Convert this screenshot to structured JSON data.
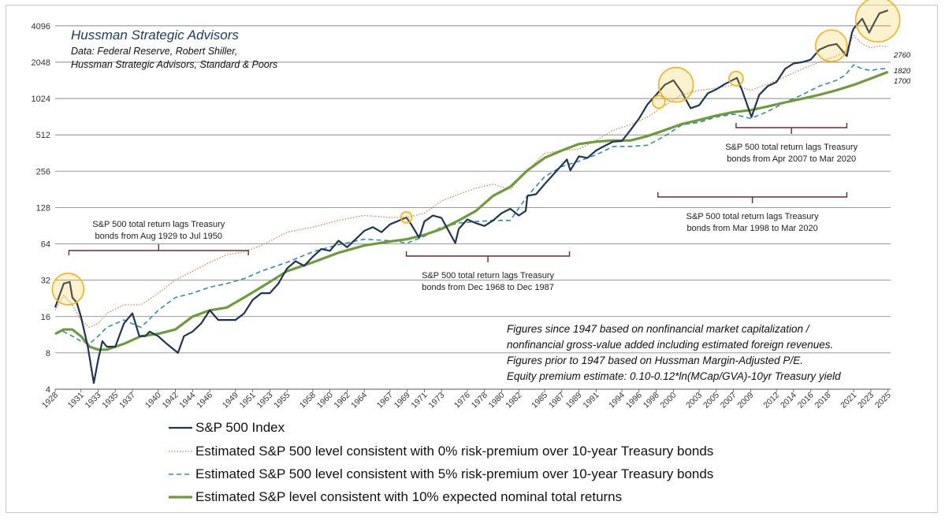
{
  "chart_data": {
    "type": "line",
    "title": "Hussman Strategic Advisors",
    "subtitle_lines": [
      "Data: Federal Reserve, Robert Shiller,",
      "Hussman Strategic Advisors, Standard & Poors"
    ],
    "y_scale": "log2",
    "ylim": [
      4,
      5600
    ],
    "y_ticks": [
      4,
      8,
      16,
      32,
      64,
      128,
      256,
      512,
      1024,
      2048,
      4096
    ],
    "xlim": [
      1928,
      2025.3
    ],
    "x_ticks": [
      1928,
      1931,
      1933,
      1935,
      1937,
      1940,
      1942,
      1944,
      1946,
      1949,
      1951,
      1953,
      1955,
      1958,
      1960,
      1962,
      1964,
      1967,
      1969,
      1971,
      1973,
      1976,
      1978,
      1980,
      1982,
      1985,
      1987,
      1989,
      1991,
      1994,
      1996,
      1998,
      2000,
      2003,
      2005,
      2007,
      2009,
      2012,
      2014,
      2016,
      2018,
      2021,
      2023,
      2025
    ],
    "series": [
      {
        "name": "S&P 500 Index",
        "color": "#1f3553",
        "style": "solid",
        "points": [
          [
            1928,
            19
          ],
          [
            1929,
            30
          ],
          [
            1929.7,
            31
          ],
          [
            1930,
            23
          ],
          [
            1930.5,
            21
          ],
          [
            1931,
            16
          ],
          [
            1931.8,
            9
          ],
          [
            1932.5,
            4.5
          ],
          [
            1933,
            7
          ],
          [
            1933.5,
            10
          ],
          [
            1934,
            9
          ],
          [
            1935,
            9
          ],
          [
            1936,
            14
          ],
          [
            1937,
            17
          ],
          [
            1937.8,
            11
          ],
          [
            1938.5,
            11
          ],
          [
            1939,
            12
          ],
          [
            1940,
            11
          ],
          [
            1941,
            9.5
          ],
          [
            1942.3,
            8
          ],
          [
            1943,
            11
          ],
          [
            1944,
            12
          ],
          [
            1945,
            14
          ],
          [
            1946,
            18
          ],
          [
            1947,
            15
          ],
          [
            1948,
            15
          ],
          [
            1949,
            15
          ],
          [
            1950,
            17
          ],
          [
            1951,
            22
          ],
          [
            1952,
            25
          ],
          [
            1953,
            25
          ],
          [
            1954,
            30
          ],
          [
            1955,
            40
          ],
          [
            1956,
            46
          ],
          [
            1957,
            42
          ],
          [
            1958,
            50
          ],
          [
            1959,
            58
          ],
          [
            1960,
            56
          ],
          [
            1961,
            68
          ],
          [
            1962,
            60
          ],
          [
            1963,
            70
          ],
          [
            1964,
            82
          ],
          [
            1965,
            88
          ],
          [
            1966,
            80
          ],
          [
            1967,
            93
          ],
          [
            1968.9,
            106
          ],
          [
            1969.5,
            92
          ],
          [
            1970.4,
            72
          ],
          [
            1971,
            98
          ],
          [
            1972,
            110
          ],
          [
            1973,
            105
          ],
          [
            1974.6,
            65
          ],
          [
            1975,
            85
          ],
          [
            1976,
            102
          ],
          [
            1977,
            95
          ],
          [
            1978,
            90
          ],
          [
            1979,
            100
          ],
          [
            1980,
            115
          ],
          [
            1981,
            125
          ],
          [
            1982,
            110
          ],
          [
            1982.8,
            120
          ],
          [
            1983,
            160
          ],
          [
            1984,
            165
          ],
          [
            1985,
            200
          ],
          [
            1986,
            240
          ],
          [
            1987.6,
            320
          ],
          [
            1988,
            260
          ],
          [
            1989,
            340
          ],
          [
            1990,
            330
          ],
          [
            1991,
            380
          ],
          [
            1992,
            415
          ],
          [
            1993,
            450
          ],
          [
            1994,
            455
          ],
          [
            1995,
            560
          ],
          [
            1996,
            700
          ],
          [
            1997,
            920
          ],
          [
            1998,
            1100
          ],
          [
            1999,
            1330
          ],
          [
            2000,
            1450
          ],
          [
            2001,
            1150
          ],
          [
            2002,
            850
          ],
          [
            2003,
            900
          ],
          [
            2004,
            1130
          ],
          [
            2005,
            1220
          ],
          [
            2006,
            1350
          ],
          [
            2007.4,
            1520
          ],
          [
            2008,
            1200
          ],
          [
            2009.1,
            720
          ],
          [
            2010,
            1100
          ],
          [
            2011,
            1300
          ],
          [
            2012,
            1400
          ],
          [
            2013,
            1800
          ],
          [
            2014,
            2000
          ],
          [
            2015,
            2050
          ],
          [
            2016,
            2150
          ],
          [
            2017,
            2600
          ],
          [
            2018,
            2800
          ],
          [
            2019,
            2900
          ],
          [
            2020.2,
            2300
          ],
          [
            2020.8,
            3600
          ],
          [
            2021,
            3900
          ],
          [
            2022,
            4700
          ],
          [
            2022.8,
            3600
          ],
          [
            2023.5,
            4500
          ],
          [
            2024,
            5200
          ],
          [
            2025,
            5500
          ]
        ]
      },
      {
        "name": "Estimated S&P 500 level consistent with 0% risk-premium over 10-year Treasury bonds",
        "color": "#e0834c",
        "style": "dotted",
        "points": [
          [
            1928,
            18
          ],
          [
            1929,
            24
          ],
          [
            1930,
            20
          ],
          [
            1931,
            15
          ],
          [
            1932,
            13
          ],
          [
            1933,
            14
          ],
          [
            1934,
            17
          ],
          [
            1936,
            20
          ],
          [
            1938,
            20
          ],
          [
            1940,
            25
          ],
          [
            1942,
            32
          ],
          [
            1944,
            38
          ],
          [
            1946,
            45
          ],
          [
            1948,
            52
          ],
          [
            1950,
            55
          ],
          [
            1952,
            62
          ],
          [
            1955,
            80
          ],
          [
            1958,
            88
          ],
          [
            1961,
            100
          ],
          [
            1964,
            110
          ],
          [
            1967,
            106
          ],
          [
            1969,
            106
          ],
          [
            1971,
            115
          ],
          [
            1973,
            145
          ],
          [
            1975,
            165
          ],
          [
            1977,
            185
          ],
          [
            1979,
            200
          ],
          [
            1981,
            180
          ],
          [
            1983,
            260
          ],
          [
            1985,
            360
          ],
          [
            1987,
            380
          ],
          [
            1989,
            390
          ],
          [
            1991,
            460
          ],
          [
            1993,
            560
          ],
          [
            1995,
            620
          ],
          [
            1997,
            720
          ],
          [
            1999,
            900
          ],
          [
            2001,
            1100
          ],
          [
            2003,
            1200
          ],
          [
            2005,
            1250
          ],
          [
            2007,
            1320
          ],
          [
            2009,
            1200
          ],
          [
            2011,
            1350
          ],
          [
            2013,
            1550
          ],
          [
            2015,
            1800
          ],
          [
            2017,
            2050
          ],
          [
            2019,
            2300
          ],
          [
            2020,
            2500
          ],
          [
            2021,
            3400
          ],
          [
            2022,
            2900
          ],
          [
            2023,
            2700
          ],
          [
            2024,
            2800
          ],
          [
            2025,
            2760
          ]
        ]
      },
      {
        "name": "Estimated S&P 500 level consistent with 5% risk-premium over 10-year Treasury bonds",
        "color": "#3a8aaa",
        "style": "dashed",
        "points": [
          [
            1928,
            11.5
          ],
          [
            1929,
            12
          ],
          [
            1930,
            11
          ],
          [
            1931,
            10
          ],
          [
            1932,
            9.5
          ],
          [
            1933,
            11
          ],
          [
            1934,
            13
          ],
          [
            1936,
            15
          ],
          [
            1938,
            13
          ],
          [
            1940,
            18
          ],
          [
            1942,
            23
          ],
          [
            1944,
            25
          ],
          [
            1946,
            28
          ],
          [
            1948,
            30
          ],
          [
            1950,
            33
          ],
          [
            1952,
            38
          ],
          [
            1955,
            45
          ],
          [
            1958,
            55
          ],
          [
            1961,
            63
          ],
          [
            1964,
            70
          ],
          [
            1967,
            68
          ],
          [
            1969,
            65
          ],
          [
            1971,
            74
          ],
          [
            1973,
            88
          ],
          [
            1975,
            95
          ],
          [
            1977,
            98
          ],
          [
            1979,
            100
          ],
          [
            1981,
            100
          ],
          [
            1983,
            160
          ],
          [
            1985,
            230
          ],
          [
            1987,
            280
          ],
          [
            1989,
            310
          ],
          [
            1991,
            350
          ],
          [
            1993,
            410
          ],
          [
            1995,
            410
          ],
          [
            1997,
            420
          ],
          [
            1999,
            500
          ],
          [
            2001,
            620
          ],
          [
            2003,
            650
          ],
          [
            2005,
            720
          ],
          [
            2007,
            760
          ],
          [
            2009,
            700
          ],
          [
            2011,
            800
          ],
          [
            2013,
            950
          ],
          [
            2015,
            1100
          ],
          [
            2017,
            1300
          ],
          [
            2019,
            1450
          ],
          [
            2020,
            1600
          ],
          [
            2021,
            1950
          ],
          [
            2022,
            1800
          ],
          [
            2023,
            1750
          ],
          [
            2024,
            1800
          ],
          [
            2025,
            1820
          ]
        ]
      },
      {
        "name": "Estimated S&P level consistent with 10% expected nominal total returns",
        "color": "#6f9a3d",
        "style": "solid-thick",
        "points": [
          [
            1928,
            11.5
          ],
          [
            1929,
            12.5
          ],
          [
            1930,
            12.5
          ],
          [
            1931,
            11
          ],
          [
            1932,
            9
          ],
          [
            1933,
            8.5
          ],
          [
            1934,
            8.5
          ],
          [
            1936,
            9.5
          ],
          [
            1938,
            11
          ],
          [
            1940,
            11.5
          ],
          [
            1942,
            12.5
          ],
          [
            1944,
            16
          ],
          [
            1946,
            18
          ],
          [
            1948,
            19
          ],
          [
            1950,
            23
          ],
          [
            1952,
            28
          ],
          [
            1955,
            38
          ],
          [
            1958,
            45
          ],
          [
            1961,
            54
          ],
          [
            1964,
            62
          ],
          [
            1967,
            67
          ],
          [
            1969,
            70
          ],
          [
            1971,
            76
          ],
          [
            1973,
            85
          ],
          [
            1975,
            100
          ],
          [
            1977,
            120
          ],
          [
            1979,
            160
          ],
          [
            1981,
            190
          ],
          [
            1983,
            260
          ],
          [
            1985,
            330
          ],
          [
            1987,
            380
          ],
          [
            1989,
            430
          ],
          [
            1991,
            450
          ],
          [
            1993,
            460
          ],
          [
            1995,
            460
          ],
          [
            1997,
            500
          ],
          [
            1999,
            560
          ],
          [
            2001,
            630
          ],
          [
            2003,
            680
          ],
          [
            2005,
            740
          ],
          [
            2007,
            790
          ],
          [
            2009,
            820
          ],
          [
            2011,
            880
          ],
          [
            2013,
            950
          ],
          [
            2015,
            1020
          ],
          [
            2017,
            1100
          ],
          [
            2019,
            1200
          ],
          [
            2021,
            1330
          ],
          [
            2023,
            1500
          ],
          [
            2025,
            1700
          ]
        ]
      }
    ],
    "end_labels": [
      "2760",
      "1820",
      "1700"
    ],
    "circled_peaks": [
      {
        "x": 1929.5,
        "y": 27
      },
      {
        "x": 1968.9,
        "y": 106
      },
      {
        "x": 1998.3,
        "y": 960
      },
      {
        "x": 2000.3,
        "y": 1330
      },
      {
        "x": 2007.3,
        "y": 1500
      },
      {
        "x": 2018.4,
        "y": 2800
      },
      {
        "x": 2023.8,
        "y": 4600
      }
    ],
    "annotations": [
      {
        "lines": [
          "S&P 500 total return lags Treasury",
          "bonds from Aug 1929 to Jul 1950"
        ],
        "from": 1929.6,
        "to": 1950.5
      },
      {
        "lines": [
          "S&P 500 total return lags Treasury",
          "bonds from Dec 1968 to Dec 1987"
        ],
        "from": 1968.9,
        "to": 1987.9
      },
      {
        "lines": [
          "S&P 500 total return lags Treasury",
          "bonds from Mar 1998 to Mar 2020"
        ],
        "from": 1998.2,
        "to": 2020.2
      },
      {
        "lines": [
          "S&P 500 total return lags Treasury",
          "bonds from Apr 2007 to Mar 2020"
        ],
        "from": 2007.3,
        "to": 2020.2
      }
    ],
    "notes": [
      "Figures since 1947 based on nonfinancial market capitalization /",
      "nonfinancial gross-value added including estimated foreign revenues.",
      "Figures prior to 1947 based on Hussman Margin-Adjusted P/E.",
      "Equity premium estimate: 0.10-0.12*ln(MCap/GVA)-10yr Treasury yield"
    ],
    "legend_position": "bottom",
    "grid": "horizontal"
  }
}
